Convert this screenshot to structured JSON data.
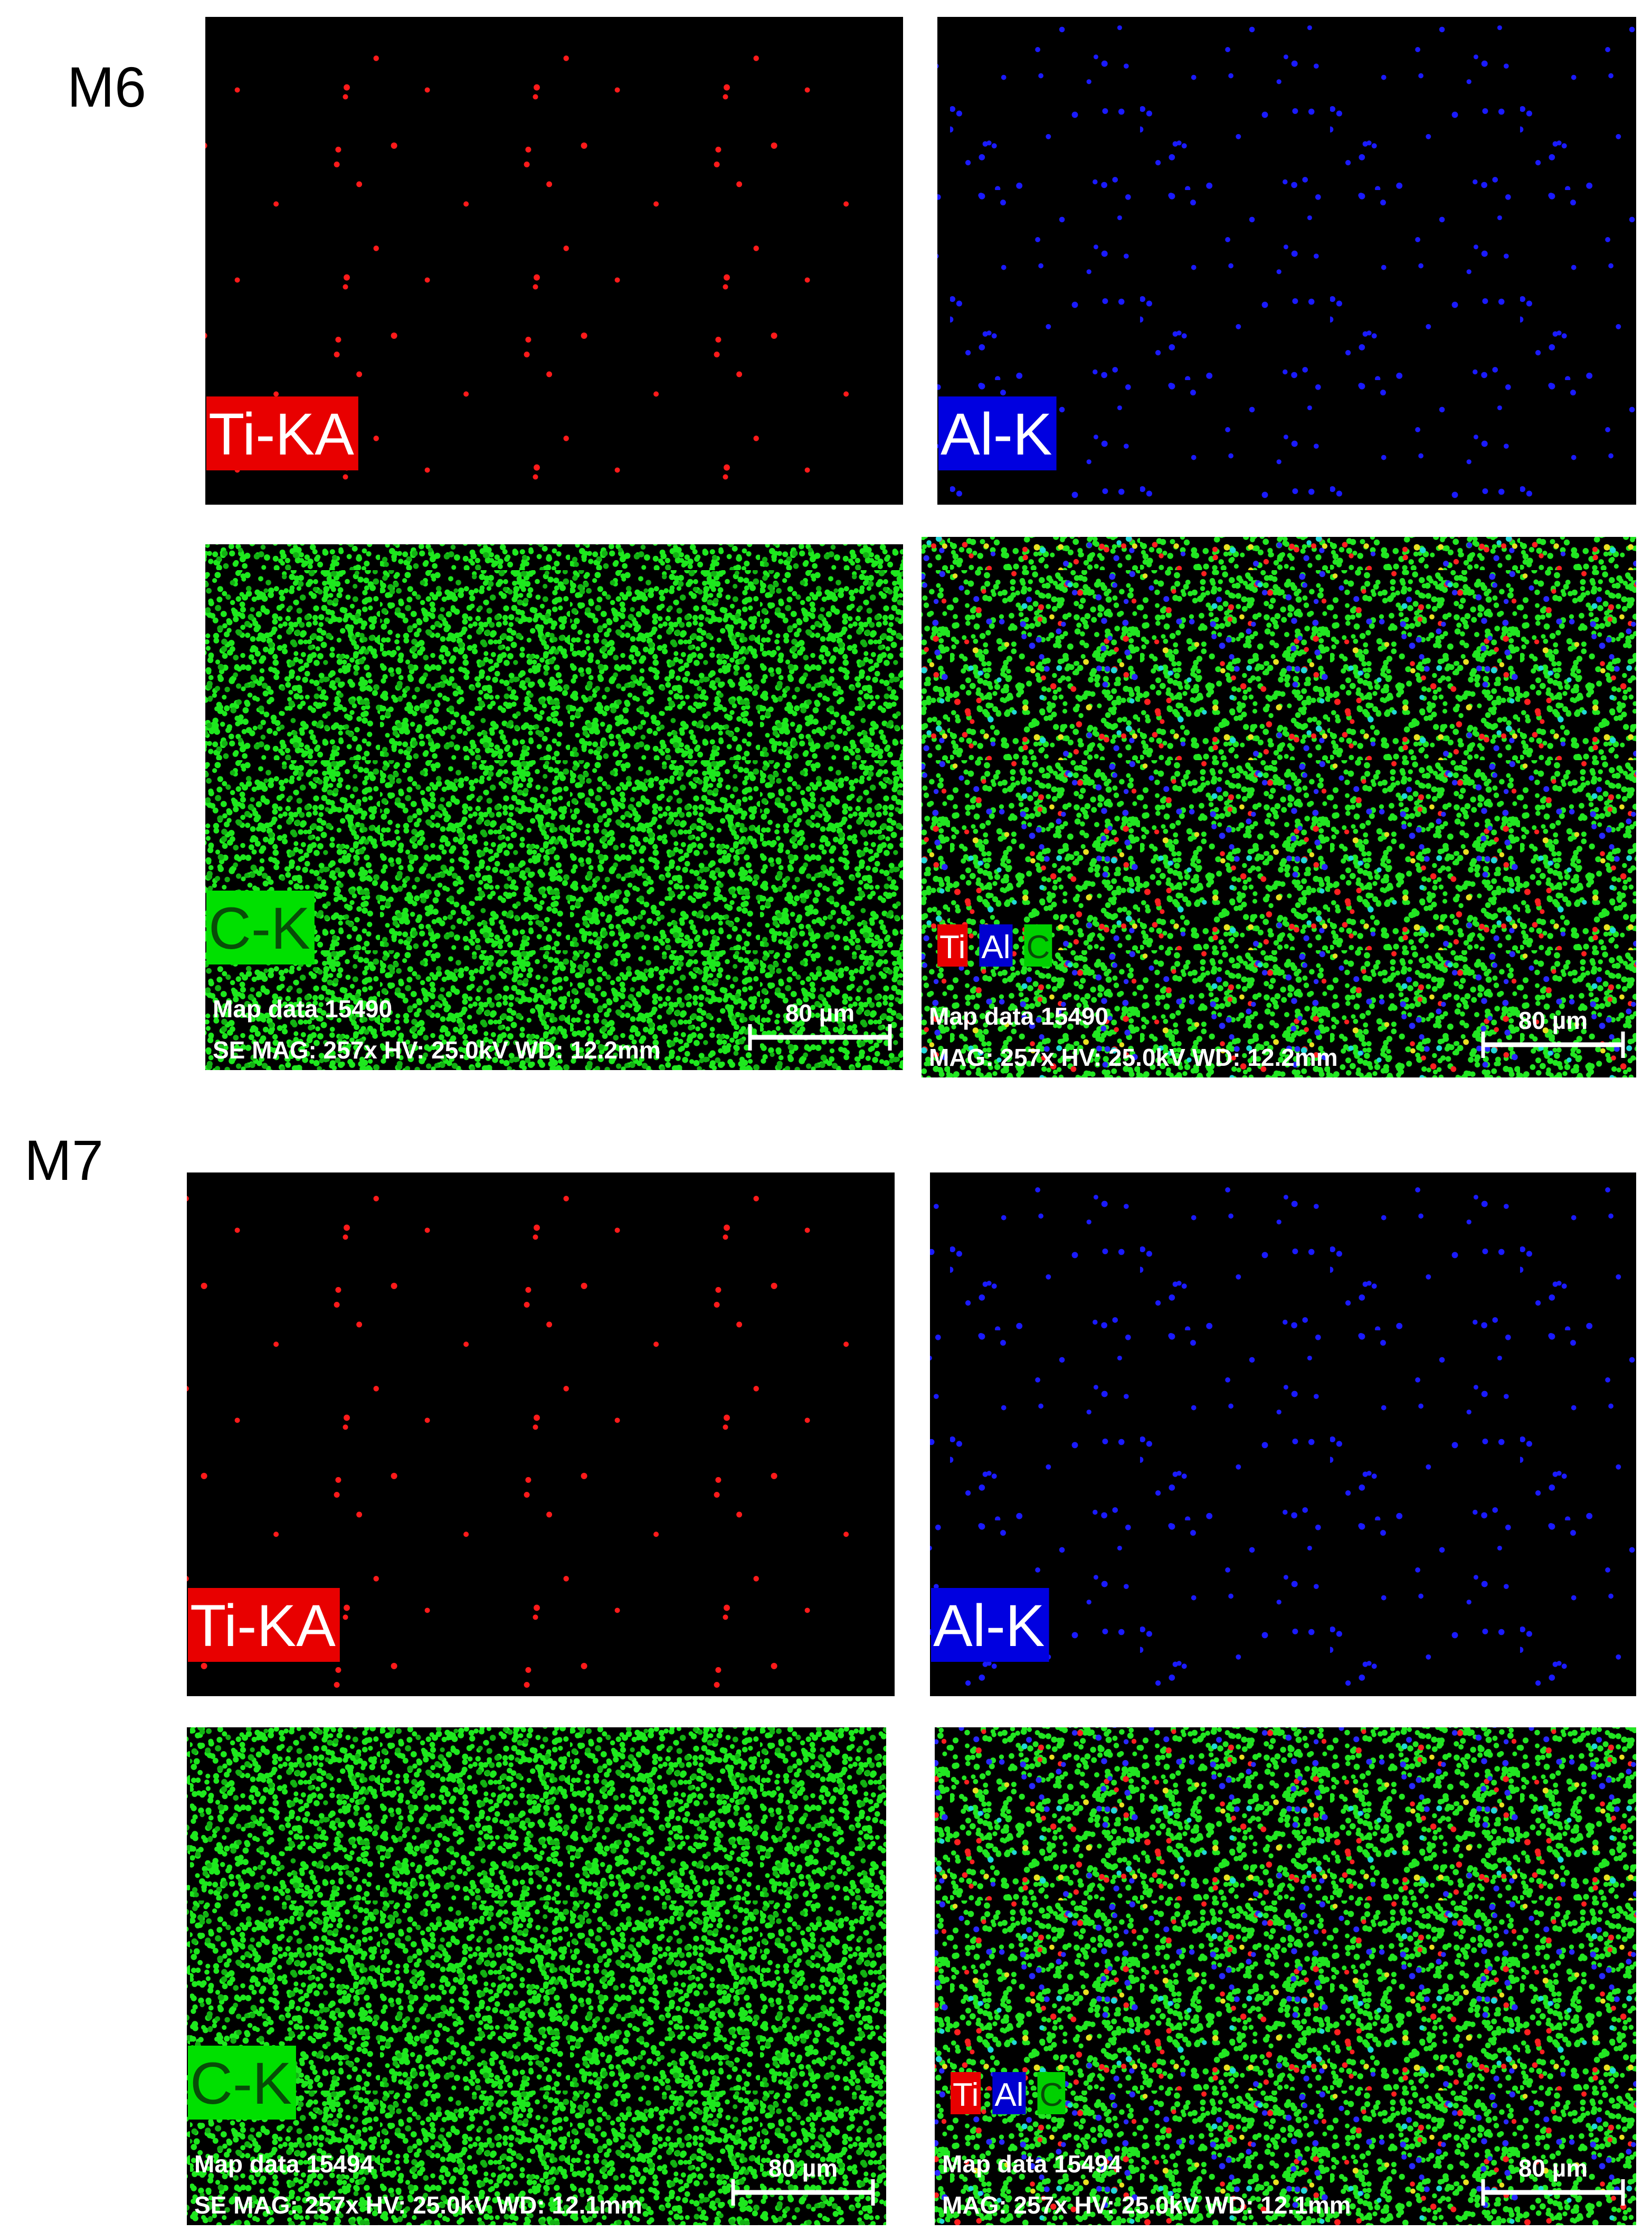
{
  "panels": [
    {
      "label": "M6",
      "maps": [
        {
          "element": "Ti-KA"
        },
        {
          "element": "Al-K"
        },
        {
          "element": "C-K",
          "map_data": "Map data 15490",
          "info": "SE  MAG: 257x  HV: 25.0kV  WD: 12.2mm",
          "scale_bar": "80 µm"
        },
        {
          "legend": [
            "Ti",
            "Al",
            "C"
          ],
          "map_data": "Map data 15490",
          "info": "MAG: 257x  HV: 25.0kV  WD: 12.2mm",
          "scale_bar": "80 µm"
        }
      ]
    },
    {
      "label": "M7",
      "maps": [
        {
          "element": "Ti-KA"
        },
        {
          "element": "Al-K"
        },
        {
          "element": "C-K",
          "map_data": "Map data 15494",
          "info": "SE  MAG: 257x  HV: 25.0kV  WD: 12.1mm",
          "scale_bar": "80 µm"
        },
        {
          "legend": [
            "Ti",
            "Al",
            "C"
          ],
          "map_data": "Map data 15494",
          "info": "MAG: 257x  HV: 25.0kV  WD: 12.1mm",
          "scale_bar": "80 µm"
        }
      ]
    }
  ]
}
